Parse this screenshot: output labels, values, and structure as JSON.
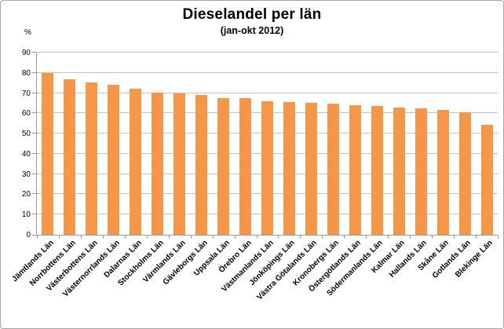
{
  "chart": {
    "title": "Dieselandel per län",
    "subtitle": "(jan-okt 2012)",
    "y_axis_unit": "%"
  },
  "chart_data": {
    "type": "bar",
    "title": "Dieselandel per län",
    "subtitle": "(jan-okt 2012)",
    "xlabel": "",
    "ylabel": "%",
    "ylim": [
      0,
      90
    ],
    "ytick_interval": 10,
    "grid": true,
    "legend": false,
    "bar_color": "#F79646",
    "gridline_color": "#c3c3c3",
    "axis_color": "#9c9c9c",
    "categories": [
      "Jämtlands Län",
      "Norrbottens Län",
      "Västerbottens Län",
      "Västernorrlands Län",
      "Dalarnas Län",
      "Stockholms Län",
      "Värmlands Län",
      "Gävleborgs Län",
      "Uppsala Län",
      "Örebro Län",
      "Västmanlands Län",
      "Jönköpings Län",
      "Västra Götalands Län",
      "Kronobergs Län",
      "Östergötlands Län",
      "Södermanlands Län",
      "Kalmar Län",
      "Hallands Län",
      "Skåne Län",
      "Gotlands Län",
      "Blekinge Län"
    ],
    "values": [
      80,
      77,
      75.2,
      74.1,
      72.2,
      70.3,
      69.9,
      69.2,
      67.6,
      67.4,
      66.1,
      65.6,
      65.1,
      64.8,
      64.1,
      63.6,
      63.0,
      62.5,
      61.5,
      60.4,
      54.4
    ]
  }
}
